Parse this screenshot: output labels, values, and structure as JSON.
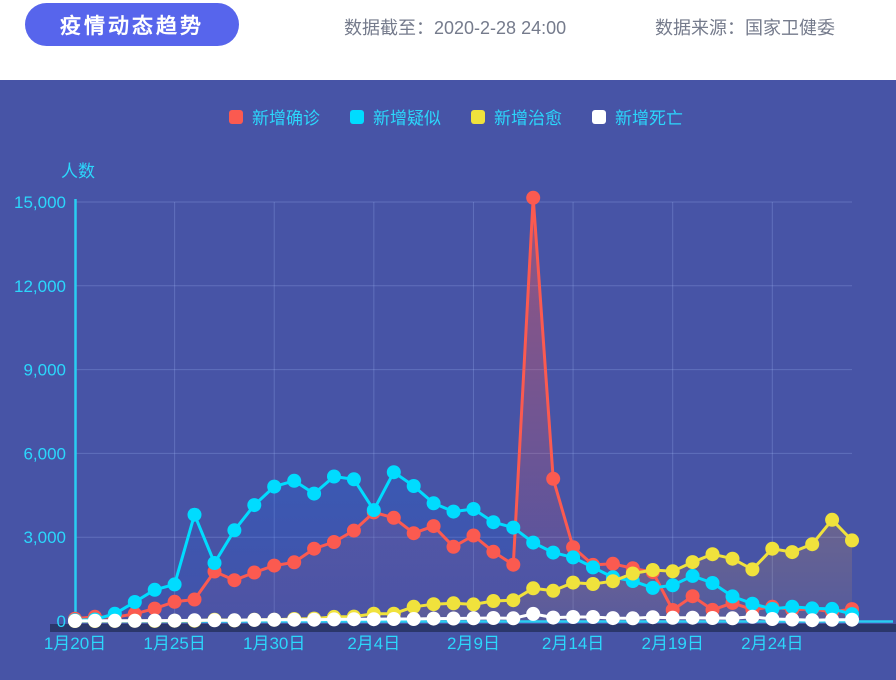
{
  "header": {
    "title": "疫情动态趋势",
    "data_cutoff": "数据截至：2020-2-28 24:00",
    "data_source": "数据来源：国家卫健委"
  },
  "colors": {
    "accent_pill": "#5765ec",
    "panel_bg": "#4754a6",
    "grid": "rgba(170,195,255,0.25)",
    "axis": "#29cdf2",
    "axis_band": "#2b376b",
    "tick_label": "#2bd7fc",
    "legend_label": "#2bd7fc"
  },
  "chart_data": {
    "type": "line",
    "title": "疫情动态趋势",
    "ylabel": "人数",
    "xlabel": "",
    "ylim": [
      0,
      15000
    ],
    "yticks": [
      0,
      3000,
      6000,
      9000,
      12000,
      15000
    ],
    "ytick_labels": [
      "0",
      "3,000",
      "6,000",
      "9,000",
      "12,000",
      "15,000"
    ],
    "x_tick_labels": [
      "1月20日",
      "1月25日",
      "1月30日",
      "2月4日",
      "2月9日",
      "2月14日",
      "2月19日",
      "2月24日"
    ],
    "x_tick_positions": [
      0,
      5,
      10,
      15,
      20,
      25,
      30,
      35
    ],
    "n_points": 40,
    "grid": true,
    "legend_position": "top",
    "series": [
      {
        "key": "confirmed",
        "name": "新增确诊",
        "color": "#fb5a50",
        "area_gradient": [
          "rgba(255,88,80,0.42)",
          "rgba(255,88,80,0.05)"
        ],
        "values": [
          77,
          149,
          131,
          259,
          444,
          688,
          769,
          1771,
          1459,
          1737,
          1982,
          2102,
          2590,
          2829,
          3235,
          3887,
          3694,
          3143,
          3399,
          2656,
          3062,
          2478,
          2015,
          15152,
          5090,
          2641,
          2009,
          2048,
          1886,
          1749,
          394,
          889,
          397,
          648,
          409,
          508,
          406,
          433,
          327,
          427
        ]
      },
      {
        "key": "suspected",
        "name": "新增疑似",
        "color": "#00dcff",
        "area_gradient": [
          "rgba(0,150,255,0.50)",
          "rgba(30,80,200,0.10)"
        ],
        "values": [
          27,
          53,
          257,
          680,
          1118,
          1309,
          3806,
          2077,
          3248,
          4148,
          4812,
          5019,
          4562,
          5173,
          5072,
          3971,
          5328,
          4833,
          4214,
          3916,
          4008,
          3536,
          3342,
          2807,
          2450,
          2277,
          1918,
          1563,
          1432,
          1185,
          1277,
          1614,
          1361,
          882,
          620,
          430,
          508,
          452,
          433,
          248
        ]
      },
      {
        "key": "cured",
        "name": "新增治愈",
        "color": "#f0e23c",
        "area_gradient": [
          "rgba(255,170,50,0.55)",
          "rgba(255,170,50,0.08)"
        ],
        "values": [
          0,
          0,
          3,
          6,
          3,
          11,
          9,
          43,
          21,
          43,
          47,
          72,
          85,
          147,
          157,
          262,
          261,
          510,
          600,
          632,
          595,
          716,
          744,
          1171,
          1081,
          1373,
          1323,
          1425,
          1701,
          1824,
          1779,
          2109,
          2393,
          2230,
          1846,
          2589,
          2467,
          2750,
          3622,
          2885
        ]
      },
      {
        "key": "deaths",
        "name": "新增死亡",
        "color": "#ffffff",
        "area_gradient": null,
        "values": [
          2,
          8,
          8,
          8,
          16,
          15,
          24,
          26,
          26,
          38,
          43,
          46,
          45,
          57,
          64,
          65,
          73,
          73,
          86,
          89,
          97,
          108,
          97,
          254,
          121,
          143,
          142,
          105,
          98,
          136,
          114,
          118,
          109,
          97,
          150,
          71,
          52,
          29,
          44,
          47
        ]
      }
    ]
  }
}
